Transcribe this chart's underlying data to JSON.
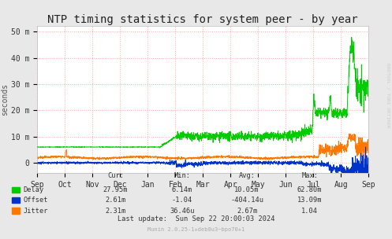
{
  "title": "NTP timing statistics for system peer - by year",
  "ylabel": "seconds",
  "bg_color": "#e8e8e8",
  "plot_bg_color": "#ffffff",
  "grid_color": "#ffaaaa",
  "yticks_labels": [
    "0",
    "10 m",
    "20 m",
    "30 m",
    "40 m",
    "50 m"
  ],
  "yticks_values": [
    0,
    0.01,
    0.02,
    0.03,
    0.04,
    0.05
  ],
  "ylim": [
    -0.004,
    0.052
  ],
  "xtick_labels": [
    "Sep",
    "Oct",
    "Nov",
    "Dec",
    "Jan",
    "Feb",
    "Mar",
    "Apr",
    "May",
    "Jun",
    "Jul",
    "Aug",
    "Sep"
  ],
  "delay_color": "#00cc00",
  "offset_color": "#0033cc",
  "jitter_color": "#ff7700",
  "title_fontsize": 10,
  "axis_fontsize": 7,
  "watermark": "RRDTOOL / TOBI OETIKER",
  "stats_header": [
    "Cur:",
    "Min:",
    "Avg:",
    "Max:"
  ],
  "stats_delay": [
    "27.95m",
    "6.14m",
    "10.05m",
    "62.80m"
  ],
  "stats_offset": [
    "2.61m",
    "-1.04",
    "-404.14u",
    "13.09m"
  ],
  "stats_jitter": [
    "2.31m",
    "36.46u",
    "2.67m",
    "1.04"
  ],
  "last_update": "Last update:  Sun Sep 22 20:00:03 2024",
  "munin_version": "Munin 2.0.25-1+deb8u3~bpo70+1"
}
